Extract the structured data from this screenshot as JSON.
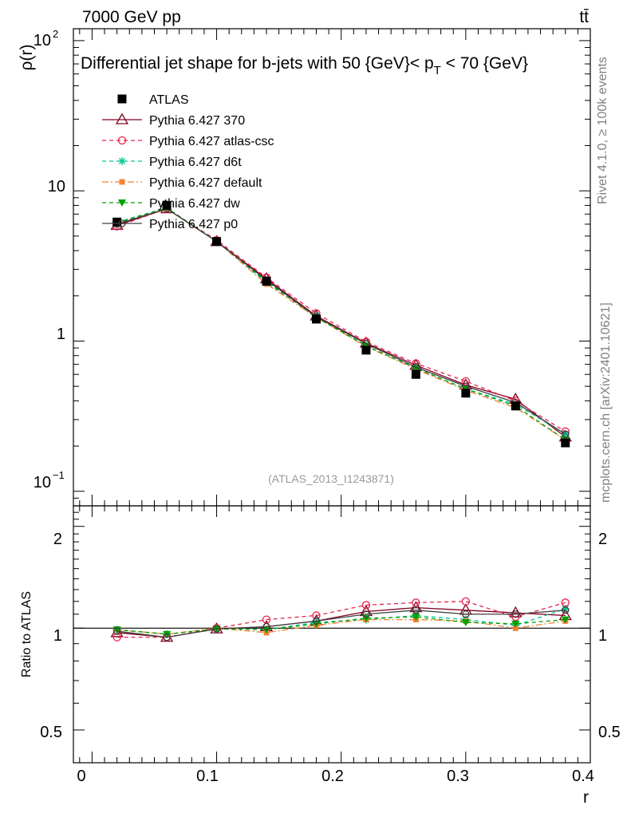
{
  "header": {
    "energy": "7000 GeV pp",
    "process": "tt̄"
  },
  "side_labels": {
    "rivet": "Rivet 4.1.0, ≥ 100k events",
    "mcplots": "mcplots.cern.ch [arXiv:2401.10621]"
  },
  "colors": {
    "ATLAS": "#000000",
    "p370": "#800020",
    "atlas_csc": "#e8224b",
    "d6t": "#00c896",
    "default": "#f58231",
    "dw": "#00a000",
    "p0": "#404040"
  },
  "chart_data": {
    "type": "line",
    "title_parts": {
      "prefix": "Differential jet shape for b-jets with 50 {GeV}< p",
      "subscript": "T",
      "suffix": " < 70 {GeV}"
    },
    "watermark": "(ATLAS_2013_I1243871)",
    "xlabel": "r",
    "ylabel": "ρ(r)",
    "ratio_ylabel": "Ratio to ATLAS",
    "xlim": [
      -0.015,
      0.4
    ],
    "ylim": [
      0.08,
      120
    ],
    "ratio_ylim": [
      0.4,
      2.3
    ],
    "x_ticks": [
      "0",
      "0.1",
      "0.2",
      "0.3",
      "0.4"
    ],
    "main_ticks": {
      "base": "10",
      "top_exp": "2",
      "mid": "10",
      "one": "1",
      "bottom_exp": "−1"
    },
    "ratio_ticks": [
      "2",
      "1",
      "0.5"
    ],
    "x": [
      0.02,
      0.06,
      0.1,
      0.14,
      0.18,
      0.22,
      0.26,
      0.3,
      0.34,
      0.38
    ],
    "series": [
      {
        "key": "ATLAS",
        "name": "ATLAS",
        "marker": "square-filled",
        "dash": "",
        "values": [
          6.2,
          8.0,
          4.6,
          2.5,
          1.4,
          0.87,
          0.6,
          0.45,
          0.37,
          0.21
        ],
        "ratio": [
          1,
          1,
          1,
          1,
          1,
          1,
          1,
          1,
          1,
          1
        ]
      },
      {
        "key": "p370",
        "name": "Pythia 6.427 370",
        "marker": "triangle-open",
        "dash": "",
        "values": [
          5.9,
          7.6,
          4.6,
          2.6,
          1.47,
          0.97,
          0.69,
          0.51,
          0.41,
          0.23
        ],
        "ratio": [
          0.97,
          0.94,
          0.995,
          1.01,
          1.05,
          1.12,
          1.15,
          1.13,
          1.11,
          1.09
        ]
      },
      {
        "key": "atlas_csc",
        "name": "Pythia 6.427 atlas-csc",
        "marker": "circle-open",
        "dash": "5,4",
        "values": [
          5.8,
          7.6,
          4.7,
          2.65,
          1.53,
          0.99,
          0.71,
          0.54,
          0.4,
          0.25
        ],
        "ratio": [
          0.94,
          0.94,
          1.0,
          1.06,
          1.09,
          1.17,
          1.19,
          1.2,
          1.08,
          1.19
        ]
      },
      {
        "key": "d6t",
        "name": "Pythia 6.427 d6t",
        "marker": "star",
        "dash": "5,4",
        "values": [
          6.2,
          7.7,
          4.6,
          2.45,
          1.46,
          0.93,
          0.66,
          0.48,
          0.38,
          0.24
        ],
        "ratio": [
          0.99,
          0.96,
          0.995,
          0.99,
          1.04,
          1.06,
          1.09,
          1.06,
          1.02,
          1.14
        ]
      },
      {
        "key": "default",
        "name": "Pythia 6.427 default",
        "marker": "square-small",
        "dash": "8,3,2,3",
        "values": [
          6.1,
          7.6,
          4.6,
          2.4,
          1.43,
          0.92,
          0.65,
          0.47,
          0.36,
          0.22
        ],
        "ratio": [
          0.99,
          0.96,
          1.0,
          0.97,
          1.02,
          1.06,
          1.06,
          1.05,
          1.0,
          1.05
        ]
      },
      {
        "key": "dw",
        "name": "Pythia 6.427 dw",
        "marker": "triangle-down-filled",
        "dash": "5,4",
        "values": [
          6.1,
          7.7,
          4.6,
          2.5,
          1.44,
          0.93,
          0.66,
          0.48,
          0.37,
          0.22
        ],
        "ratio": [
          0.99,
          0.96,
          0.995,
          0.99,
          1.03,
          1.07,
          1.08,
          1.04,
          1.03,
          1.06
        ]
      },
      {
        "key": "p0",
        "name": "Pythia 6.427 p0",
        "marker": "circle-open-small",
        "dash": "",
        "values": [
          6.0,
          7.6,
          4.6,
          2.55,
          1.45,
          0.96,
          0.67,
          0.5,
          0.39,
          0.24
        ],
        "ratio": [
          0.98,
          0.94,
          0.995,
          1.01,
          1.05,
          1.1,
          1.13,
          1.1,
          1.1,
          1.13
        ]
      }
    ]
  }
}
